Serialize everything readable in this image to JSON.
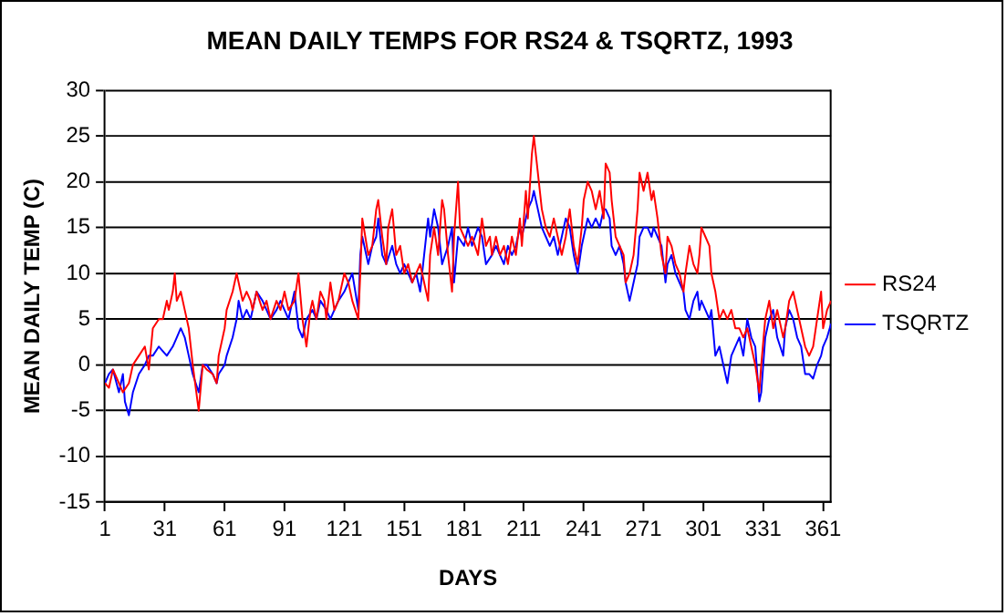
{
  "chart_data": {
    "type": "line",
    "title": "MEAN DAILY TEMPS FOR RS24 & TSQRTZ, 1993",
    "xlabel": "DAYS",
    "ylabel": "MEAN DAILY TEMP (C)",
    "xlim": [
      1,
      365
    ],
    "xticks": [
      1,
      31,
      61,
      91,
      121,
      151,
      181,
      211,
      241,
      271,
      301,
      331,
      361
    ],
    "ylim": [
      -15,
      30
    ],
    "yticks": [
      -15,
      -10,
      -5,
      0,
      5,
      10,
      15,
      20,
      25,
      30
    ],
    "grid": "y",
    "legend": "right",
    "marker": "none",
    "line_style": "solid",
    "series": [
      {
        "name": "RS24",
        "color": "#ff0000",
        "x": [
          1,
          3,
          5,
          8,
          10,
          13,
          15,
          18,
          21,
          23,
          25,
          28,
          30,
          32,
          33,
          35,
          36,
          37,
          39,
          41,
          43,
          45,
          48,
          50,
          52,
          55,
          57,
          58,
          61,
          62,
          65,
          67,
          68,
          70,
          72,
          74,
          75,
          77,
          80,
          82,
          84,
          87,
          89,
          91,
          93,
          96,
          98,
          100,
          102,
          104,
          105,
          107,
          109,
          111,
          112,
          114,
          116,
          118,
          121,
          123,
          125,
          128,
          129,
          130,
          133,
          135,
          137,
          138,
          140,
          142,
          143,
          145,
          147,
          149,
          151,
          153,
          155,
          157,
          159,
          161,
          163,
          164,
          166,
          168,
          170,
          171,
          173,
          175,
          176,
          178,
          179,
          181,
          183,
          185,
          188,
          190,
          192,
          194,
          195,
          197,
          199,
          201,
          203,
          205,
          207,
          209,
          210,
          212,
          213,
          215,
          216,
          218,
          220,
          222,
          224,
          226,
          228,
          230,
          232,
          234,
          236,
          238,
          240,
          241,
          243,
          245,
          247,
          249,
          251,
          252,
          254,
          255,
          257,
          259,
          261,
          262,
          264,
          266,
          268,
          269,
          271,
          273,
          275,
          276,
          278,
          280,
          282,
          283,
          285,
          287,
          289,
          291,
          292,
          294,
          296,
          298,
          299,
          300,
          302,
          304,
          305,
          307,
          309,
          311,
          313,
          315,
          317,
          319,
          321,
          323,
          325,
          327,
          329,
          330,
          332,
          334,
          336,
          338,
          341,
          342,
          344,
          346,
          348,
          350,
          352,
          354,
          356,
          358,
          360,
          361,
          363,
          365
        ],
        "values": [
          -2,
          -2.5,
          -0.5,
          -2,
          -3,
          -2,
          0,
          1,
          2,
          -0.5,
          4,
          5,
          5,
          7,
          6,
          8,
          10,
          7,
          8,
          6,
          4,
          0,
          -5,
          0,
          -0.5,
          -1,
          -2,
          1,
          4,
          6,
          8,
          10,
          9,
          7,
          8,
          7,
          6,
          8,
          6,
          7,
          5,
          7,
          6,
          8,
          6,
          7,
          10,
          5,
          2,
          6,
          7,
          5,
          8,
          7,
          5,
          9,
          6,
          7,
          10,
          9,
          7,
          5,
          10,
          16,
          12,
          13,
          17,
          18,
          14,
          11,
          15,
          17,
          12,
          13,
          10,
          11,
          9,
          10,
          11,
          9,
          7,
          12,
          15,
          12,
          18,
          17,
          12,
          8,
          14,
          20,
          15,
          14,
          13,
          14,
          12,
          16,
          13,
          14,
          12,
          14,
          12,
          13,
          11,
          14,
          12,
          16,
          13,
          19,
          16,
          23,
          25,
          21,
          17,
          15,
          14,
          16,
          14,
          12,
          14,
          17,
          13,
          11,
          15,
          18,
          20,
          19,
          17,
          19,
          16,
          22,
          21,
          18,
          14,
          13,
          12,
          9,
          10,
          12,
          17,
          21,
          19,
          21,
          18,
          19,
          16,
          12,
          10,
          14,
          13,
          11,
          10,
          8,
          10,
          13,
          11,
          10,
          12,
          15,
          14,
          13,
          10,
          8,
          5,
          6,
          5,
          6,
          4,
          4,
          3,
          4,
          2,
          0,
          -3,
          0,
          5,
          7,
          4,
          6,
          3,
          4,
          7,
          8,
          6,
          4,
          2,
          1,
          2,
          5,
          8,
          4,
          6,
          7
        ]
      },
      {
        "name": "TSQRTZ",
        "color": "#0000ff",
        "x": [
          1,
          3,
          5,
          8,
          10,
          11,
          13,
          15,
          18,
          21,
          23,
          25,
          28,
          30,
          32,
          35,
          37,
          39,
          41,
          43,
          45,
          48,
          50,
          52,
          55,
          57,
          58,
          61,
          62,
          65,
          67,
          68,
          70,
          72,
          74,
          77,
          80,
          82,
          84,
          87,
          89,
          91,
          93,
          96,
          98,
          100,
          102,
          105,
          107,
          109,
          112,
          114,
          116,
          118,
          121,
          123,
          125,
          128,
          129,
          130,
          133,
          135,
          137,
          138,
          140,
          142,
          145,
          147,
          149,
          151,
          153,
          155,
          157,
          159,
          161,
          163,
          164,
          166,
          168,
          170,
          173,
          175,
          176,
          178,
          181,
          183,
          185,
          188,
          190,
          192,
          195,
          197,
          199,
          201,
          203,
          205,
          207,
          209,
          210,
          212,
          213,
          215,
          216,
          218,
          220,
          222,
          224,
          226,
          228,
          230,
          232,
          234,
          236,
          238,
          240,
          241,
          243,
          245,
          247,
          249,
          251,
          252,
          254,
          255,
          257,
          259,
          261,
          262,
          264,
          266,
          268,
          269,
          271,
          273,
          275,
          276,
          278,
          280,
          282,
          283,
          285,
          287,
          289,
          291,
          292,
          294,
          296,
          298,
          299,
          300,
          302,
          304,
          305,
          307,
          309,
          311,
          313,
          315,
          317,
          319,
          321,
          323,
          325,
          327,
          329,
          330,
          332,
          334,
          336,
          338,
          341,
          342,
          344,
          346,
          348,
          350,
          352,
          354,
          356,
          358,
          360,
          361,
          363,
          365
        ],
        "values": [
          -2,
          -1,
          -0.5,
          -3,
          -1,
          -4,
          -5.5,
          -3,
          -1,
          0,
          1,
          1,
          2,
          1.5,
          1,
          2,
          3,
          4,
          3,
          1,
          -1,
          -3,
          0,
          0,
          -1,
          -2,
          -1,
          0,
          1,
          3,
          5,
          7,
          5,
          6,
          5,
          8,
          7,
          6,
          5,
          6,
          7,
          6,
          5,
          8,
          4,
          3,
          5,
          6,
          5,
          7,
          6,
          5,
          6,
          7,
          8,
          9,
          10,
          6,
          12,
          14,
          11,
          13,
          14,
          16,
          12,
          11,
          13,
          11,
          10,
          11,
          10,
          9,
          10,
          8,
          12,
          16,
          14,
          17,
          15,
          11,
          13,
          15,
          9,
          14,
          13,
          15,
          13,
          15,
          14,
          11,
          12,
          13,
          12,
          11,
          13,
          12,
          13,
          15,
          14,
          16,
          17,
          18,
          19,
          17,
          15,
          14,
          13,
          14,
          12,
          14,
          16,
          15,
          12,
          10,
          13,
          14,
          16,
          15,
          16,
          15,
          17,
          17,
          16,
          13,
          12,
          13,
          11,
          9,
          7,
          9,
          11,
          14,
          15,
          15,
          14,
          15,
          14,
          13,
          9,
          11,
          12,
          10,
          9,
          8,
          6,
          5,
          7,
          8,
          6,
          7,
          6,
          5,
          6,
          1,
          2,
          0,
          -2,
          1,
          2,
          3,
          1,
          5,
          3,
          2,
          -4,
          -3,
          3,
          5,
          6,
          3,
          1,
          4,
          6,
          5,
          3,
          2,
          -1,
          -1,
          -1.5,
          0,
          1,
          2,
          3,
          4.5
        ]
      }
    ]
  }
}
